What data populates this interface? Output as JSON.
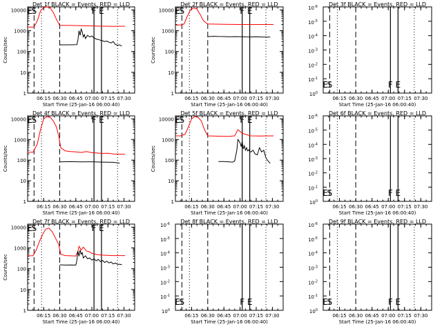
{
  "figure": {
    "xlabel": "Start Time (25-Jan-16 06:00:40)",
    "ylabel": "Counts/sec"
  },
  "panel_order": [
    "1f",
    "2f",
    "3f",
    "4f",
    "5f",
    "6f",
    "7f",
    "8f",
    "9f"
  ],
  "chart_data": [
    {
      "type": "line",
      "title": "Det 1f BLACK = Events, RED = LLD",
      "xlabel": "Start Time (25-Jan-16 06:00:40)",
      "ylabel": "Counts/sec",
      "yscale": "log",
      "ylim": [
        1,
        14000
      ],
      "xlim": [
        "06:00",
        "07:40"
      ],
      "x_ticks": [
        "06:15",
        "06:30",
        "06:45",
        "07:00",
        "07:15",
        "07:30"
      ],
      "y_ticks": [
        "1",
        "10",
        "100",
        "1000",
        "10000"
      ],
      "markers": [
        {
          "label": "E",
          "time": "06:02"
        },
        {
          "label": "S",
          "time": "06:06"
        },
        {
          "label": "F",
          "time": "07:02"
        },
        {
          "label": "E",
          "time": "07:09"
        }
      ],
      "series": [
        {
          "name": "RED = LLD",
          "color": "#ff0000",
          "x": [
            "06:00",
            "06:03",
            "06:06",
            "06:09",
            "06:12",
            "06:15",
            "06:18",
            "06:21",
            "06:24",
            "06:27",
            "06:30",
            "06:40",
            "06:50",
            "07:00",
            "07:10",
            "07:20",
            "07:31"
          ],
          "y": [
            1500,
            1500,
            1500,
            3000,
            9000,
            13000,
            14000,
            13000,
            7500,
            3500,
            1800,
            1800,
            1750,
            1700,
            1650,
            1620,
            1650
          ]
        },
        {
          "name": "BLACK = Events",
          "color": "#000000",
          "x": [
            "06:30",
            "06:38",
            "06:46",
            "06:47",
            "06:48",
            "06:49",
            "06:50",
            "06:51",
            "06:52",
            "06:53",
            "06:54",
            "06:56",
            "06:58",
            "07:00",
            "07:02",
            "07:04",
            "07:06",
            "07:08",
            "07:10",
            "07:12",
            "07:14",
            "07:16",
            "07:18",
            "07:20",
            "07:22",
            "07:24",
            "07:26",
            "07:28"
          ],
          "y": [
            210,
            210,
            215,
            350,
            1000,
            600,
            1200,
            900,
            500,
            650,
            420,
            600,
            500,
            560,
            450,
            400,
            380,
            350,
            330,
            300,
            320,
            280,
            260,
            300,
            220,
            200,
            210,
            180
          ]
        }
      ]
    },
    {
      "type": "line",
      "title": "Det 2f BLACK = Events, RED = LLD",
      "xlabel": "Start Time (25-Jan-16 06:00:40)",
      "ylabel": "Counts/sec",
      "yscale": "log",
      "ylim": [
        1,
        14000
      ],
      "xlim": [
        "06:00",
        "07:40"
      ],
      "x_ticks": [
        "06:15",
        "06:30",
        "06:45",
        "07:00",
        "07:15",
        "07:30"
      ],
      "y_ticks": [
        "1",
        "10",
        "100",
        "1000",
        "10000"
      ],
      "markers": [
        {
          "label": "E",
          "time": "06:02"
        },
        {
          "label": "S",
          "time": "06:06"
        },
        {
          "label": "F",
          "time": "07:02"
        },
        {
          "label": "E",
          "time": "07:09"
        }
      ],
      "series": [
        {
          "name": "RED = LLD",
          "color": "#ff0000",
          "x": [
            "06:00",
            "06:05",
            "06:08",
            "06:11",
            "06:14",
            "06:17",
            "06:20",
            "06:23",
            "06:26",
            "06:30",
            "06:45",
            "07:00",
            "07:15",
            "07:31"
          ],
          "y": [
            1900,
            1900,
            2100,
            5000,
            10000,
            12500,
            11000,
            6000,
            3000,
            2100,
            2050,
            2000,
            2000,
            2000
          ]
        },
        {
          "name": "BLACK = Events",
          "color": "#000000",
          "x": [
            "06:30",
            "06:35",
            "06:40",
            "06:45",
            "06:50",
            "06:55",
            "07:00",
            "07:05",
            "07:10",
            "07:15",
            "07:20",
            "07:25",
            "07:28"
          ],
          "y": [
            520,
            540,
            530,
            525,
            510,
            520,
            515,
            505,
            500,
            510,
            500,
            490,
            500
          ]
        }
      ]
    },
    {
      "type": "line",
      "title": "Det 3f BLACK = Events, RED = LLD",
      "xlabel": "Start Time (25-Jan-16 06:00:40)",
      "ylabel": "",
      "ylim": [
        1,
        1e-06
      ],
      "xlim": [
        "06:00",
        "07:40"
      ],
      "x_ticks": [
        "06:15",
        "06:30",
        "06:45",
        "07:00",
        "07:15",
        "07:30"
      ],
      "y_ticks_exp": [
        -6,
        -5,
        -4,
        -3,
        -2,
        -1,
        0
      ],
      "markers": [
        {
          "label": "E",
          "time": "06:02"
        },
        {
          "label": "S",
          "time": "06:06"
        },
        {
          "label": "F",
          "time": "07:02"
        },
        {
          "label": "E",
          "time": "07:09"
        }
      ],
      "series": []
    },
    {
      "type": "line",
      "title": "Det 4f BLACK = Events, RED = LLD",
      "xlabel": "Start Time (25-Jan-16 06:00:40)",
      "ylabel": "Counts/sec",
      "yscale": "log",
      "ylim": [
        1,
        14000
      ],
      "xlim": [
        "06:00",
        "07:40"
      ],
      "x_ticks": [
        "06:15",
        "06:30",
        "06:45",
        "07:00",
        "07:15",
        "07:30"
      ],
      "y_ticks": [
        "1",
        "10",
        "100",
        "1000",
        "10000"
      ],
      "markers": [
        {
          "label": "E",
          "time": "06:02"
        },
        {
          "label": "S",
          "time": "06:06"
        },
        {
          "label": "F",
          "time": "07:02"
        },
        {
          "label": "E",
          "time": "07:09"
        }
      ],
      "series": [
        {
          "name": "RED = LLD",
          "color": "#ff0000",
          "x": [
            "06:00",
            "06:05",
            "06:09",
            "06:12",
            "06:15",
            "06:18",
            "06:21",
            "06:24",
            "06:27",
            "06:29",
            "06:31",
            "06:35",
            "06:40",
            "06:45",
            "06:50",
            "06:55",
            "07:00",
            "07:05",
            "07:10",
            "07:15",
            "07:20",
            "07:25",
            "07:31"
          ],
          "y": [
            240,
            240,
            600,
            3000,
            10000,
            13000,
            12000,
            8000,
            4000,
            1500,
            400,
            280,
            260,
            250,
            235,
            260,
            230,
            220,
            210,
            215,
            200,
            195,
            190
          ]
        },
        {
          "name": "BLACK = Events",
          "color": "#000000",
          "x": [
            "06:30",
            "06:40",
            "06:50",
            "07:00",
            "07:10",
            "07:20",
            "07:26"
          ],
          "y": [
            82,
            84,
            82,
            83,
            80,
            78,
            72
          ]
        }
      ]
    },
    {
      "type": "line",
      "title": "Det 5f BLACK = Events, RED = LLD",
      "xlabel": "Start Time (25-Jan-16 06:00:40)",
      "ylabel": "Counts/sec",
      "yscale": "log",
      "ylim": [
        1,
        14000
      ],
      "xlim": [
        "06:00",
        "07:40"
      ],
      "x_ticks": [
        "06:15",
        "06:30",
        "06:45",
        "07:00",
        "07:15",
        "07:30"
      ],
      "y_ticks": [
        "1",
        "10",
        "100",
        "1000",
        "10000"
      ],
      "markers": [
        {
          "label": "E",
          "time": "06:02"
        },
        {
          "label": "S",
          "time": "06:06"
        },
        {
          "label": "F",
          "time": "07:02"
        },
        {
          "label": "E",
          "time": "07:09"
        }
      ],
      "series": [
        {
          "name": "RED = LLD",
          "color": "#ff0000",
          "x": [
            "06:00",
            "06:05",
            "06:09",
            "06:12",
            "06:15",
            "06:18",
            "06:21",
            "06:24",
            "06:27",
            "06:30",
            "06:40",
            "06:50",
            "06:55",
            "06:58",
            "07:02",
            "07:06",
            "07:10",
            "07:20",
            "07:31"
          ],
          "y": [
            1500,
            1500,
            1800,
            4000,
            10000,
            13000,
            12000,
            8000,
            3000,
            1500,
            1450,
            1420,
            1500,
            3000,
            2000,
            1700,
            1500,
            1480,
            1500
          ]
        },
        {
          "name": "BLACK = Events",
          "color": "#000000",
          "x": [
            "06:40",
            "06:45",
            "06:50",
            "06:53",
            "06:55",
            "06:57",
            "06:58",
            "07:00",
            "07:01",
            "07:02",
            "07:03",
            "07:04",
            "07:05",
            "07:06",
            "07:07",
            "07:08",
            "07:09",
            "07:10",
            "07:12",
            "07:14",
            "07:16",
            "07:18",
            "07:20",
            "07:22",
            "07:24",
            "07:26",
            "07:28"
          ],
          "y": [
            85,
            85,
            82,
            80,
            90,
            300,
            1000,
            700,
            450,
            800,
            350,
            500,
            300,
            400,
            280,
            320,
            260,
            250,
            300,
            200,
            180,
            400,
            250,
            300,
            130,
            90,
            70
          ]
        }
      ]
    },
    {
      "type": "line",
      "title": "Det 6f BLACK = Events, RED = LLD",
      "xlabel": "Start Time (25-Jan-16 06:00:40)",
      "ylabel": "",
      "ylim": [
        1,
        1e-06
      ],
      "xlim": [
        "06:00",
        "07:40"
      ],
      "x_ticks": [
        "06:15",
        "06:30",
        "06:45",
        "07:00",
        "07:15",
        "07:30"
      ],
      "y_ticks_exp": [
        -6,
        -5,
        -4,
        -3,
        -2,
        -1,
        0
      ],
      "markers": [
        {
          "label": "E",
          "time": "06:02"
        },
        {
          "label": "S",
          "time": "06:06"
        },
        {
          "label": "F",
          "time": "07:02"
        },
        {
          "label": "E",
          "time": "07:09"
        }
      ],
      "series": []
    },
    {
      "type": "line",
      "title": "Det 7f BLACK = Events, RED = LLD",
      "xlabel": "Start Time (25-Jan-16 06:00:40)",
      "ylabel": "Counts/sec",
      "yscale": "log",
      "ylim": [
        1,
        14000
      ],
      "xlim": [
        "06:00",
        "07:40"
      ],
      "x_ticks": [
        "06:15",
        "06:30",
        "06:45",
        "07:00",
        "07:15",
        "07:30"
      ],
      "y_ticks": [
        "1",
        "10",
        "100",
        "1000",
        "10000"
      ],
      "markers": [
        {
          "label": "E",
          "time": "06:02"
        },
        {
          "label": "S",
          "time": "06:06"
        },
        {
          "label": "F",
          "time": "07:02"
        },
        {
          "label": "E",
          "time": "07:09"
        }
      ],
      "series": [
        {
          "name": "RED = LLD",
          "color": "#ff0000",
          "x": [
            "06:00",
            "06:05",
            "06:08",
            "06:11",
            "06:14",
            "06:17",
            "06:20",
            "06:23",
            "06:26",
            "06:29",
            "06:31",
            "06:35",
            "06:40",
            "06:45",
            "06:47",
            "06:48",
            "06:50",
            "06:52",
            "06:55",
            "06:58",
            "07:00",
            "07:05",
            "07:10",
            "07:20",
            "07:31"
          ],
          "y": [
            420,
            420,
            800,
            2000,
            4500,
            8000,
            9000,
            6000,
            3000,
            1500,
            500,
            430,
            420,
            410,
            700,
            1200,
            800,
            1100,
            700,
            650,
            550,
            480,
            450,
            430,
            430
          ]
        },
        {
          "name": "BLACK = Events",
          "color": "#000000",
          "x": [
            "06:30",
            "06:35",
            "06:40",
            "06:45",
            "06:46",
            "06:47",
            "06:48",
            "06:49",
            "06:50",
            "06:51",
            "06:52",
            "06:54",
            "06:56",
            "06:58",
            "07:00",
            "07:02",
            "07:04",
            "07:06",
            "07:08",
            "07:10",
            "07:12",
            "07:14",
            "07:16",
            "07:18",
            "07:20",
            "07:22",
            "07:24",
            "07:26",
            "07:28"
          ],
          "y": [
            155,
            150,
            152,
            150,
            250,
            700,
            400,
            800,
            500,
            600,
            330,
            420,
            300,
            330,
            260,
            300,
            240,
            280,
            220,
            250,
            200,
            230,
            190,
            210,
            170,
            190,
            160,
            165,
            155
          ]
        }
      ]
    },
    {
      "type": "line",
      "title": "Det 8f BLACK = Events, RED = LLD",
      "xlabel": "Start Time (25-Jan-16 06:00:40)",
      "ylabel": "",
      "ylim": [
        1,
        1e-06
      ],
      "xlim": [
        "06:00",
        "07:40"
      ],
      "x_ticks": [
        "06:15",
        "06:30",
        "06:45",
        "07:00",
        "07:15",
        "07:30"
      ],
      "y_ticks_exp": [
        -6,
        -5,
        -4,
        -3,
        -2,
        -1,
        0
      ],
      "markers": [
        {
          "label": "E",
          "time": "06:02"
        },
        {
          "label": "S",
          "time": "06:06"
        },
        {
          "label": "F",
          "time": "07:02"
        },
        {
          "label": "E",
          "time": "07:09"
        }
      ],
      "series": []
    },
    {
      "type": "line",
      "title": "Det 9f BLACK = Events, RED = LLD",
      "xlabel": "Start Time (25-Jan-16 06:00:40)",
      "ylabel": "",
      "ylim": [
        1,
        1e-06
      ],
      "xlim": [
        "06:00",
        "07:40"
      ],
      "x_ticks": [
        "06:15",
        "06:30",
        "06:45",
        "07:00",
        "07:15",
        "07:30"
      ],
      "y_ticks_exp": [
        -6,
        -5,
        -4,
        -3,
        -2,
        -1,
        0
      ],
      "markers": [
        {
          "label": "E",
          "time": "06:02"
        },
        {
          "label": "S",
          "time": "06:06"
        },
        {
          "label": "F",
          "time": "07:02"
        },
        {
          "label": "E",
          "time": "07:09"
        }
      ],
      "series": []
    }
  ]
}
